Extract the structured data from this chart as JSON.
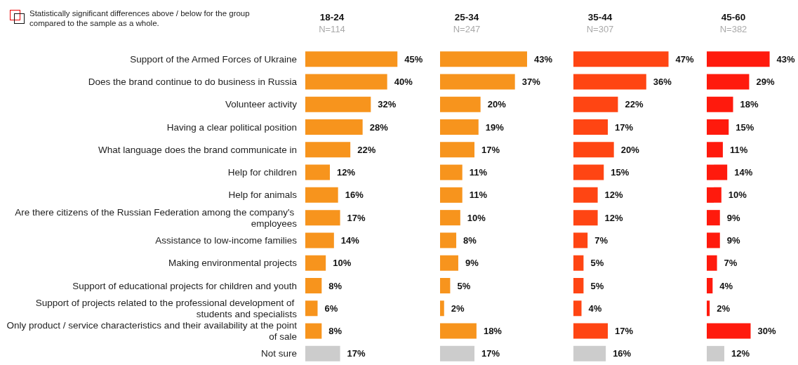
{
  "chart_data": [
    {
      "type": "bar",
      "orientation": "horizontal",
      "title": "18-24",
      "subtitle": "N=114",
      "tick_labels": "y",
      "annotations": [
        "Statistically significant differences above / below for the group compared to the sample as a whole."
      ],
      "categories": [
        "Support of the Armed Forces of Ukraine",
        "Does the brand continue to do business in Russia",
        "Volunteer activity",
        "Having a clear political position",
        "What language does the brand communicate in",
        "Help for children",
        "Help for animals",
        "Are there citizens of the Russian Federation among the company's employees",
        "Assistance to low-income families",
        "Making environmental projects",
        "Support of educational projects for children and youth",
        "Support of projects related to the professional development of students and specialists",
        "Only product / service characteristics and their availability at the point of sale",
        "Not sure"
      ],
      "values": [
        45,
        40,
        32,
        28,
        22,
        12,
        16,
        17,
        14,
        10,
        8,
        6,
        8,
        17
      ],
      "value_labels": [
        "45%",
        "40%",
        "32%",
        "28%",
        "22%",
        "12%",
        "16%",
        "17%",
        "14%",
        "10%",
        "8%",
        "6%",
        "8%",
        "17%"
      ],
      "colors": [
        "#f7941d",
        "#f7941d",
        "#f7941d",
        "#f7941d",
        "#f7941d",
        "#f7941d",
        "#f7941d",
        "#f7941d",
        "#f7941d",
        "#f7941d",
        "#f7941d",
        "#f7941d",
        "#f7941d",
        "#cccccc"
      ]
    },
    {
      "type": "bar",
      "orientation": "horizontal",
      "title": "25-34",
      "subtitle": "N=247",
      "tick_labels": false,
      "categories": [
        null,
        null,
        null,
        null,
        null,
        null,
        null,
        null,
        null,
        null,
        null,
        null,
        null,
        null
      ],
      "values": [
        43,
        37,
        20,
        19,
        17,
        11,
        11,
        10,
        8,
        9,
        5,
        2,
        18,
        17
      ],
      "value_labels": [
        "43%",
        "37%",
        "20%",
        "19%",
        "17%",
        "11%",
        "11%",
        "10%",
        "8%",
        "9%",
        "5%",
        "2%",
        "18%",
        "17%"
      ],
      "colors": [
        "#f7941d",
        "#f7941d",
        "#f7941d",
        "#f7941d",
        "#f7941d",
        "#f7941d",
        "#f7941d",
        "#f7941d",
        "#f7941d",
        "#f7941d",
        "#f7941d",
        "#f7941d",
        "#f7941d",
        "#cccccc"
      ]
    },
    {
      "type": "bar",
      "orientation": "horizontal",
      "title": "35-44",
      "subtitle": "N=307",
      "tick_labels": false,
      "categories": [
        null,
        null,
        null,
        null,
        null,
        null,
        null,
        null,
        null,
        null,
        null,
        null,
        null,
        null
      ],
      "values": [
        47,
        36,
        22,
        17,
        20,
        15,
        12,
        12,
        7,
        5,
        5,
        4,
        17,
        16
      ],
      "value_labels": [
        "47%",
        "36%",
        "22%",
        "17%",
        "20%",
        "15%",
        "12%",
        "12%",
        "7%",
        "5%",
        "5%",
        "4%",
        "17%",
        "16%"
      ],
      "colors": [
        "#ff4513",
        "#ff4513",
        "#ff4513",
        "#ff4513",
        "#ff4513",
        "#ff4513",
        "#ff4513",
        "#ff4513",
        "#ff4513",
        "#ff4513",
        "#ff4513",
        "#ff4513",
        "#ff4513",
        "#cccccc"
      ]
    },
    {
      "type": "bar",
      "orientation": "horizontal",
      "title": "45-60",
      "subtitle": "N=382",
      "tick_labels": false,
      "categories": [
        null,
        null,
        null,
        null,
        null,
        null,
        null,
        null,
        null,
        null,
        null,
        null,
        null,
        null
      ],
      "values": [
        43,
        29,
        18,
        15,
        11,
        14,
        10,
        9,
        9,
        7,
        4,
        2,
        30,
        12
      ],
      "value_labels": [
        "43%",
        "29%",
        "18%",
        "15%",
        "11%",
        "14%",
        "10%",
        "9%",
        "9%",
        "7%",
        "4%",
        "2%",
        "30%",
        "12%"
      ],
      "colors": [
        "#ff1a0d",
        "#ff1a0d",
        "#ff1a0d",
        "#ff1a0d",
        "#ff1a0d",
        "#ff1a0d",
        "#ff1a0d",
        "#ff1a0d",
        "#ff1a0d",
        "#ff1a0d",
        "#ff1a0d",
        "#ff1a0d",
        "#ff1a0d",
        "#cccccc"
      ]
    }
  ]
}
